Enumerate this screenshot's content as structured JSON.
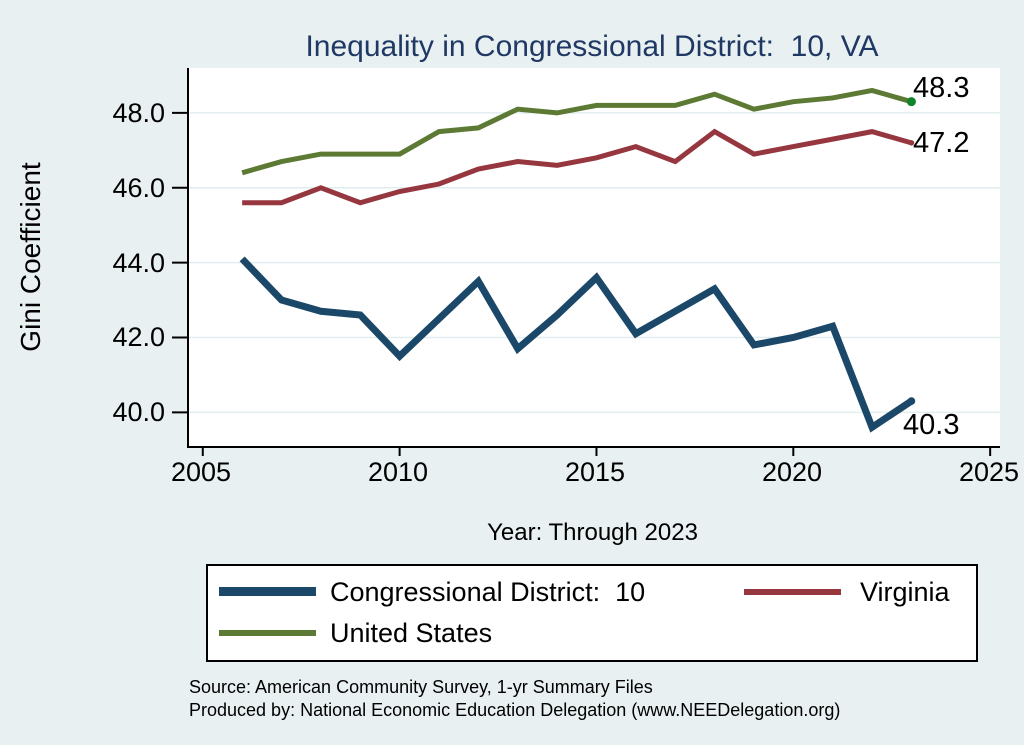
{
  "title": {
    "text": "Inequality in Congressional District:  10, VA",
    "color": "#1f3864"
  },
  "y_axis": {
    "title": "Gini Coefficient",
    "ticks": [
      "48.0",
      "46.0",
      "44.0",
      "42.0",
      "40.0"
    ],
    "tick_values": [
      48,
      46,
      44,
      42,
      40
    ]
  },
  "x_axis": {
    "label": "Year: Through 2023",
    "ticks": [
      "2005",
      "2010",
      "2015",
      "2020",
      "2025"
    ],
    "tick_values": [
      2005,
      2010,
      2015,
      2020,
      2025
    ]
  },
  "end_labels": {
    "united_states": "48.3",
    "virginia": "47.2",
    "congressional_district": "40.3"
  },
  "legend": {
    "items": [
      {
        "label": "Congressional District:  10",
        "color": "#1b4869"
      },
      {
        "label": "Virginia",
        "color": "#96373f"
      },
      {
        "label": "United States",
        "color": "#5d7a35"
      }
    ]
  },
  "source": {
    "line1": "Source: American Community Survey, 1-yr Summary Files",
    "line2": "Produced by: National Economic Education Delegation (www.NEEDelegation.org)"
  },
  "colors": {
    "background": "#e9f0f2",
    "plot_background": "#ffffff",
    "gridline": "#e2edef",
    "axis": "#000000",
    "title_text": "#1f3864",
    "cd10_line": "#1b4869",
    "virginia_line": "#96373f",
    "us_line": "#5d7a35",
    "us_end_marker": "#108428"
  },
  "chart_data": {
    "type": "line",
    "title": "Inequality in Congressional District:  10, VA",
    "xlabel": "Year: Through 2023",
    "ylabel": "Gini Coefficient",
    "xlim": [
      2004.65,
      2025.25
    ],
    "ylim": [
      39.1,
      49.2
    ],
    "grid_values": [
      40,
      42,
      44,
      46,
      48
    ],
    "grid": "horizontal-only",
    "legend_position": "bottom",
    "x": [
      2006,
      2007,
      2008,
      2009,
      2010,
      2011,
      2012,
      2013,
      2014,
      2015,
      2016,
      2017,
      2018,
      2019,
      2020,
      2021,
      2022,
      2023
    ],
    "series": [
      {
        "name": "Congressional District:  10",
        "color": "#1b4869",
        "width": 7,
        "end_label": "40.3",
        "values": [
          44.1,
          43.0,
          42.7,
          42.6,
          41.5,
          42.5,
          43.5,
          41.7,
          42.6,
          43.6,
          42.1,
          42.7,
          43.3,
          41.8,
          42.0,
          42.3,
          39.6,
          40.3
        ]
      },
      {
        "name": "Virginia",
        "color": "#96373f",
        "width": 5,
        "end_label": "47.2",
        "values": [
          45.6,
          45.6,
          46.0,
          45.6,
          45.9,
          46.1,
          46.5,
          46.7,
          46.6,
          46.8,
          47.1,
          46.7,
          47.5,
          46.9,
          47.1,
          47.3,
          47.5,
          47.2
        ]
      },
      {
        "name": "United States",
        "color": "#5d7a35",
        "width": 5,
        "end_label": "48.3",
        "end_marker_color": "#108428",
        "values": [
          46.4,
          46.7,
          46.9,
          46.9,
          46.9,
          47.5,
          47.6,
          48.1,
          48.0,
          48.2,
          48.2,
          48.2,
          48.5,
          48.1,
          48.3,
          48.4,
          48.6,
          48.3
        ]
      }
    ]
  }
}
